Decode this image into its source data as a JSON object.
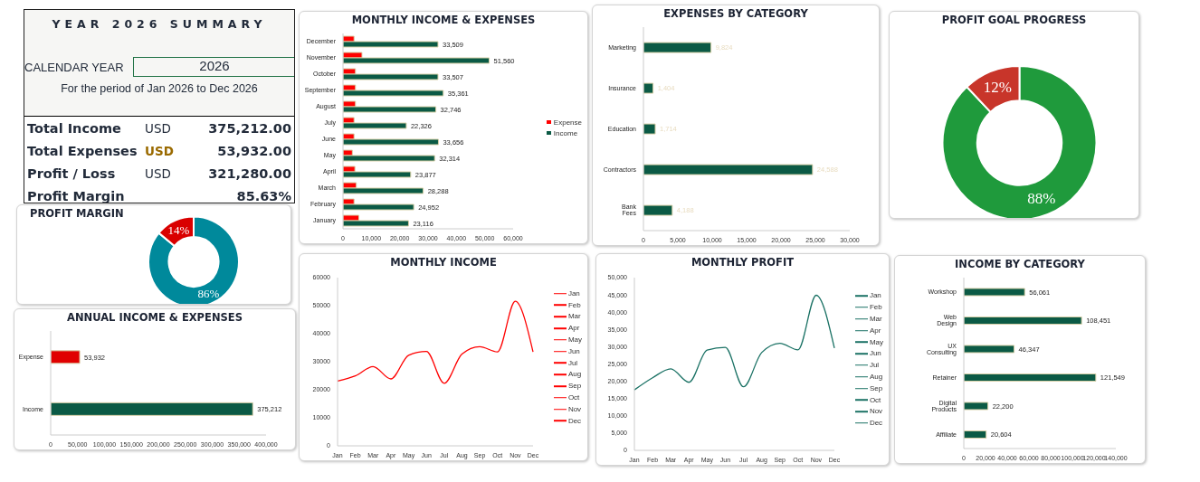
{
  "chart_data": [
    {
      "type": "other",
      "title": "YEAR 2026 SUMMARY",
      "annotations": [
        "CALENDAR YEAR",
        "2026",
        "For the period of Jan 2026 to Dec 2026",
        "Total Income",
        "USD",
        "375,212.00",
        "Total Expenses",
        "USD",
        "53,932.00",
        "Profit / Loss",
        "USD",
        "321,280.00",
        "Profit Margin",
        "85.63%"
      ]
    },
    {
      "type": "bar",
      "orientation": "horizontal",
      "title": "MONTHLY INCOME & EXPENSES",
      "categories": [
        "December",
        "November",
        "October",
        "September",
        "August",
        "July",
        "June",
        "May",
        "April",
        "March",
        "February",
        "January"
      ],
      "series": [
        {
          "name": "Expense",
          "color": "#ff0000",
          "values": [
            3900,
            6700,
            4400,
            4400,
            4400,
            3900,
            3900,
            3300,
            4200,
            4700,
            3900,
            5600
          ]
        },
        {
          "name": "Income",
          "color": "#0b5a45",
          "values": [
            33509,
            51560,
            33507,
            35361,
            32746,
            22326,
            33656,
            32314,
            23877,
            28288,
            24952,
            23116
          ],
          "value_labels": [
            "33,509",
            "51,560",
            "33,507",
            "35,361",
            "32,746",
            "22,326",
            "33,656",
            "32,314",
            "23,877",
            "28,288",
            "24,952",
            "23,116"
          ]
        }
      ],
      "xlim": [
        0,
        60000
      ],
      "xticks": [
        {
          "value": 0,
          "label": "0"
        },
        {
          "value": 10000,
          "label": "10,000"
        },
        {
          "value": 20000,
          "label": "20,000"
        },
        {
          "value": 30000,
          "label": "30,000"
        },
        {
          "value": 40000,
          "label": "40,000"
        },
        {
          "value": 50000,
          "label": "50,000"
        },
        {
          "value": 60000,
          "label": "60,000"
        }
      ],
      "legend": "right"
    },
    {
      "type": "bar",
      "orientation": "horizontal",
      "title": "EXPENSES BY CATEGORY",
      "categories": [
        "Marketing",
        "Insurance",
        "Education",
        "Contractors",
        "Bank Fees"
      ],
      "values": [
        9824,
        1404,
        1714,
        24588,
        4188
      ],
      "value_labels": [
        "9,824",
        "1,404",
        "1,714",
        "24,588",
        "4,188"
      ],
      "color": "#0b5a45",
      "xlim": [
        0,
        30000
      ],
      "xticks": [
        {
          "value": 0,
          "label": "0"
        },
        {
          "value": 5000,
          "label": "5,000"
        },
        {
          "value": 10000,
          "label": "10,000"
        },
        {
          "value": 15000,
          "label": "15,000"
        },
        {
          "value": 20000,
          "label": "20,000"
        },
        {
          "value": 25000,
          "label": "25,000"
        },
        {
          "value": 30000,
          "label": "30,000"
        }
      ]
    },
    {
      "type": "donut",
      "title": "PROFIT GOAL PROGRESS",
      "categories": [
        null,
        null
      ],
      "values": [
        88,
        12
      ],
      "colors": [
        "#1f9a3c",
        "#c8352a"
      ],
      "value_labels": [
        "88%",
        "12%"
      ]
    },
    {
      "type": "donut",
      "title": "PROFIT MARGIN",
      "categories": [
        null,
        null
      ],
      "values": [
        86,
        14
      ],
      "colors": [
        "#00899b",
        "#d90000"
      ],
      "value_labels": [
        "86%",
        "14%"
      ]
    },
    {
      "type": "bar",
      "orientation": "horizontal",
      "title": "ANNUAL INCOME & EXPENSES",
      "categories": [
        "Expense",
        "Income"
      ],
      "values": [
        53932,
        375212
      ],
      "colors": [
        "#e00000",
        "#0b5a45"
      ],
      "value_labels": [
        "53,932",
        "375,212"
      ],
      "xlim": [
        0,
        400000
      ],
      "xticks": [
        {
          "value": 0,
          "label": "0"
        },
        {
          "value": 50000,
          "label": "50,000"
        },
        {
          "value": 100000,
          "label": "100,000"
        },
        {
          "value": 150000,
          "label": "150,000"
        },
        {
          "value": 200000,
          "label": "200,000"
        },
        {
          "value": 250000,
          "label": "250,000"
        },
        {
          "value": 300000,
          "label": "300,000"
        },
        {
          "value": 350000,
          "label": "350,000"
        },
        {
          "value": 400000,
          "label": "400,000"
        }
      ]
    },
    {
      "type": "line",
      "title": "MONTHLY INCOME",
      "categories": [
        "Jan",
        "Feb",
        "Mar",
        "Apr",
        "May",
        "Jun",
        "Jul",
        "Aug",
        "Sep",
        "Oct",
        "Nov",
        "Dec"
      ],
      "values": [
        23116,
        24952,
        28288,
        23877,
        32314,
        33656,
        22326,
        32746,
        35361,
        33507,
        51560,
        33509
      ],
      "color": "#ff0000",
      "ylim": [
        0,
        60000
      ],
      "yticks": [
        0,
        10000,
        20000,
        30000,
        40000,
        50000,
        60000
      ],
      "marker": "none"
    },
    {
      "type": "line",
      "title": "MONTHLY PROFIT",
      "categories": [
        "Jan",
        "Feb",
        "Mar",
        "Apr",
        "May",
        "Jun",
        "Jul",
        "Aug",
        "Sep",
        "Oct",
        "Nov",
        "Dec"
      ],
      "values": [
        17500,
        21000,
        23600,
        19700,
        29000,
        29800,
        18400,
        28300,
        31000,
        29100,
        44900,
        29600
      ],
      "color": "#1b7265",
      "ylim": [
        0,
        50000
      ],
      "yticks": [
        0,
        {
          "value": 5000,
          "label": "5,000"
        },
        {
          "value": 10000,
          "label": "10,000"
        },
        {
          "value": 15000,
          "label": "15,000"
        },
        {
          "value": 20000,
          "label": "20,000"
        },
        {
          "value": 25000,
          "label": "25,000"
        },
        {
          "value": 30000,
          "label": "30,000"
        },
        {
          "value": 35000,
          "label": "35,000"
        },
        {
          "value": 40000,
          "label": "40,000"
        },
        {
          "value": 45000,
          "label": "45,000"
        },
        {
          "value": 50000,
          "label": "50,000"
        }
      ],
      "marker": "none"
    },
    {
      "type": "bar",
      "orientation": "horizontal",
      "title": "INCOME BY CATEGORY",
      "categories": [
        "Workshop",
        "Web Design",
        "UX Consulting",
        "Retainer",
        "Digital Products",
        "Affiliate"
      ],
      "values": [
        56061,
        108451,
        46347,
        121549,
        22200,
        20604
      ],
      "color": "#0b5a45",
      "value_labels": [
        "56,061",
        "108,451",
        "46,347",
        "121,549",
        "22,200",
        "20,604"
      ],
      "xlim": [
        0,
        140000
      ],
      "xticks": [
        {
          "value": 0,
          "label": "0"
        },
        {
          "value": 20000,
          "label": "20,000"
        },
        {
          "value": 40000,
          "label": "40,000"
        },
        {
          "value": 60000,
          "label": "60,000"
        },
        {
          "value": 80000,
          "label": "80,000"
        },
        {
          "value": 100000,
          "label": "100,000"
        },
        {
          "value": 120000,
          "label": "120,000"
        },
        {
          "value": 140000,
          "label": "140,000"
        }
      ]
    }
  ]
}
